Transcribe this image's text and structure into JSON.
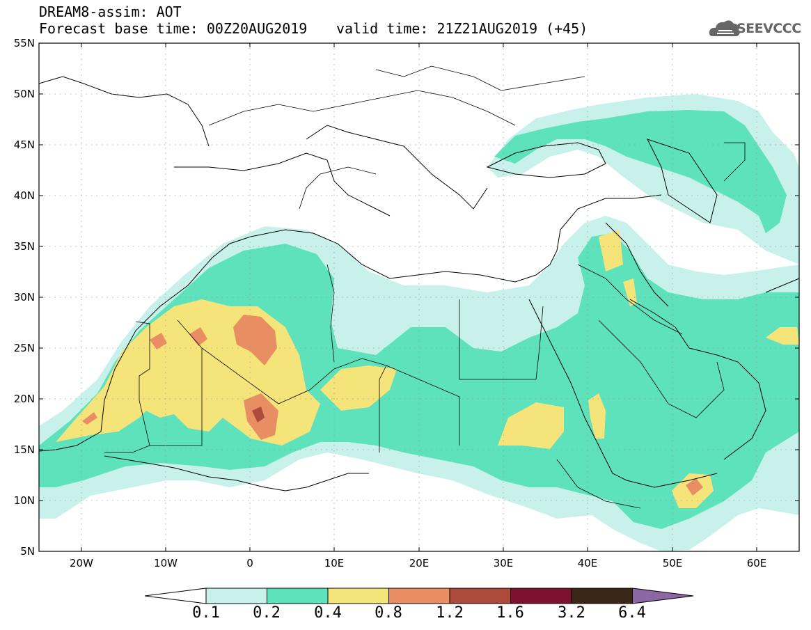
{
  "header": {
    "title_line1": "DREAM8-assim: AOT",
    "base_time": "Forecast base time: 00Z20AUG2019",
    "valid_time": "valid time: 21Z21AUG2019 (+45)",
    "logo_text": "SEEVCCC"
  },
  "map": {
    "lon_range": [
      -25,
      65
    ],
    "lat_range": [
      5,
      55
    ],
    "lat_labels": [
      "55N",
      "50N",
      "45N",
      "40N",
      "35N",
      "30N",
      "25N",
      "20N",
      "15N",
      "10N",
      "5N"
    ],
    "lat_values": [
      55,
      50,
      45,
      40,
      35,
      30,
      25,
      20,
      15,
      10,
      5
    ],
    "lon_labels": [
      "20W",
      "10W",
      "0",
      "10E",
      "20E",
      "30E",
      "40E",
      "50E",
      "60E"
    ],
    "lon_values": [
      -20,
      -10,
      0,
      10,
      20,
      30,
      40,
      50,
      60
    ]
  },
  "colorbar": {
    "levels": [
      "0.1",
      "0.2",
      "0.4",
      "0.8",
      "1.2",
      "1.6",
      "3.2",
      "6.4"
    ],
    "colors": [
      "#c8f1ec",
      "#5ee2bc",
      "#f5e47a",
      "#e88e62",
      "#ad4a3c",
      "#7e1030",
      "#3b2717",
      "#8d66a4"
    ],
    "under_color": "#ffffff"
  }
}
